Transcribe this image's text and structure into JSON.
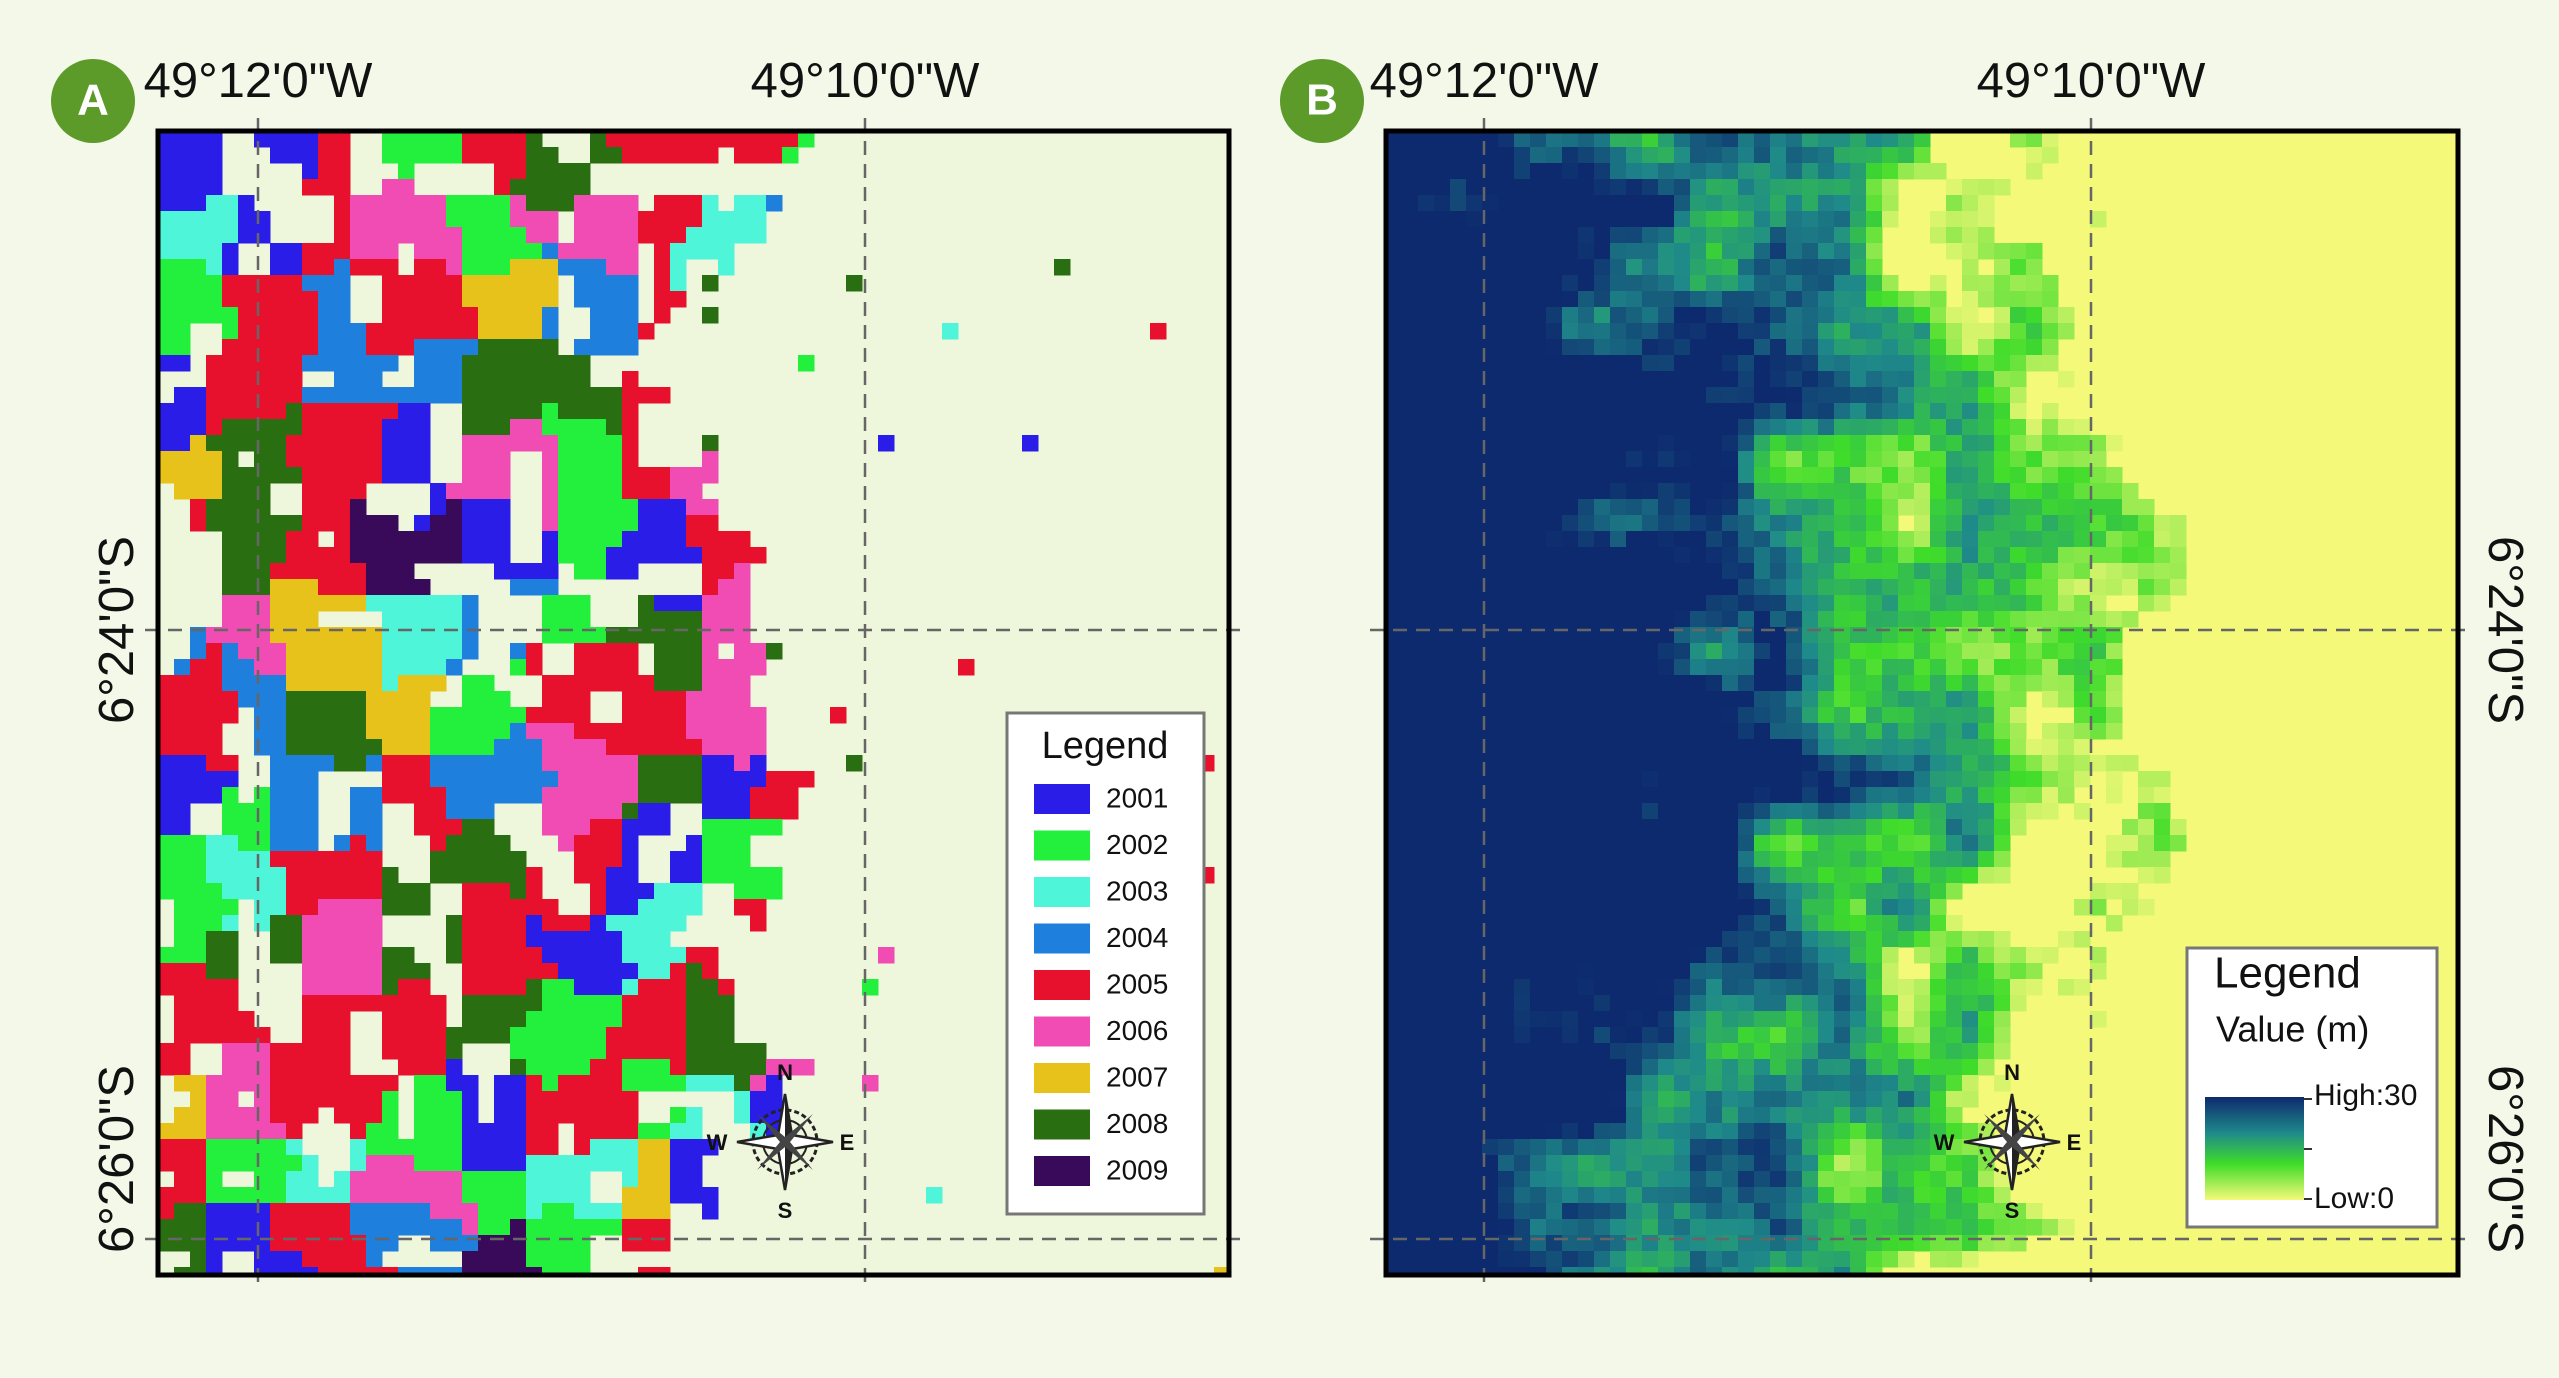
{
  "panels": [
    {
      "badge": "A",
      "lon_labels": [
        "49°12'0\"W",
        "49°10'0\"W"
      ],
      "lat_labels": [
        "6°24'0\"S",
        "6°26'0\"S"
      ],
      "compass": {
        "n": "N",
        "e": "E",
        "s": "S",
        "w": "W"
      },
      "legend": {
        "title": "Legend",
        "items": [
          {
            "label": "2001",
            "color": "#2b1de8"
          },
          {
            "label": "2002",
            "color": "#22f03c"
          },
          {
            "label": "2003",
            "color": "#4ff5d8"
          },
          {
            "label": "2004",
            "color": "#1e7fdc"
          },
          {
            "label": "2005",
            "color": "#e8112d"
          },
          {
            "label": "2006",
            "color": "#f04cb4"
          },
          {
            "label": "2007",
            "color": "#e6c21a"
          },
          {
            "label": "2008",
            "color": "#2a6e12"
          },
          {
            "label": "2009",
            "color": "#3a0a5a"
          }
        ]
      }
    },
    {
      "badge": "B",
      "lon_labels": [
        "49°12'0\"W",
        "49°10'0\"W"
      ],
      "lat_labels": [
        "6°24'0\"S",
        "6°26'0\"S"
      ],
      "compass": {
        "n": "N",
        "e": "E",
        "s": "S",
        "w": "W"
      },
      "legend": {
        "title": "Legend",
        "subtitle": "Value (m)",
        "high": "High:30",
        "low": "Low:0"
      }
    }
  ]
}
